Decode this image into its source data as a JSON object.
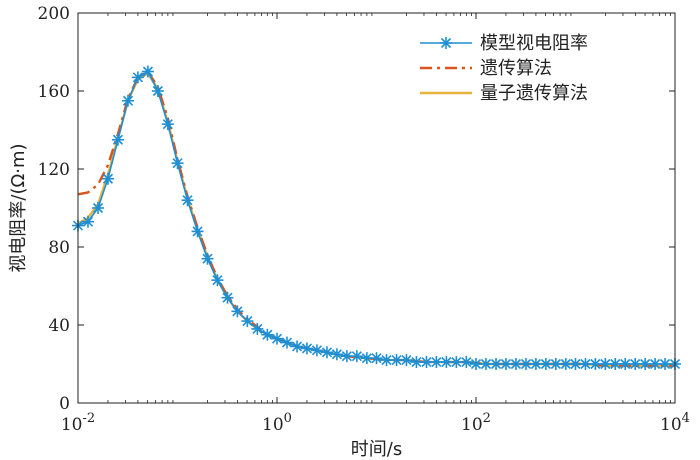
{
  "chart_data": {
    "type": "line",
    "title": "",
    "xlabel": "时间/s",
    "ylabel": "视电阻率/(Ω·m)",
    "xscale": "log",
    "xlim": [
      0.01,
      10000
    ],
    "ylim": [
      0,
      200
    ],
    "x_ticks": [
      {
        "value": 0.01,
        "base": "10",
        "exp": "-2"
      },
      {
        "value": 1,
        "base": "10",
        "exp": "0"
      },
      {
        "value": 100,
        "base": "10",
        "exp": "2"
      },
      {
        "value": 10000,
        "base": "10",
        "exp": "4"
      }
    ],
    "y_ticks": [
      "0",
      "40",
      "80",
      "120",
      "160",
      "200"
    ],
    "legend_position": "top-right",
    "series": [
      {
        "name": "模型视电阻率",
        "color": "#1f8fd4",
        "style": "solid-star-markers",
        "x": [
          0.01,
          0.0126,
          0.0159,
          0.02,
          0.0252,
          0.0318,
          0.04,
          0.0504,
          0.0635,
          0.08,
          0.1,
          0.126,
          0.159,
          0.2,
          0.252,
          0.318,
          0.4,
          0.504,
          0.635,
          0.8,
          1.0,
          1.26,
          1.59,
          2.0,
          2.52,
          3.18,
          4.0,
          5.04,
          6.35,
          8.0,
          10,
          12.6,
          15.9,
          20,
          25.2,
          31.8,
          40,
          50.4,
          63.5,
          80,
          100,
          126,
          159,
          200,
          252,
          318,
          400,
          504,
          635,
          800,
          1000,
          1259,
          1585,
          1995,
          2512,
          3162,
          3981,
          5012,
          6310,
          7943,
          10000
        ],
        "y": [
          91,
          93,
          100,
          115,
          135,
          155,
          167,
          170,
          160,
          143,
          123,
          104,
          88,
          74,
          63,
          54,
          47,
          42,
          38,
          35,
          33,
          31,
          29,
          28,
          27,
          26,
          25,
          24,
          24,
          23,
          23,
          22,
          22,
          22,
          21,
          21,
          21,
          21,
          21,
          21,
          20,
          20,
          20,
          20,
          20,
          20,
          20,
          20,
          20,
          20,
          20,
          20,
          20,
          20,
          20,
          20,
          20,
          20,
          20,
          20,
          20
        ]
      },
      {
        "name": "遗传算法",
        "color": "#d9541e",
        "style": "dash-dot",
        "x": [
          0.01,
          0.0126,
          0.0159,
          0.02,
          0.0252,
          0.0318,
          0.04,
          0.0504,
          0.0635,
          0.08,
          0.1,
          0.126,
          0.159,
          0.2,
          0.252,
          0.318,
          0.4,
          0.504,
          0.635,
          0.8,
          1.0,
          1.26,
          1.59,
          2.0,
          3.18,
          5.04,
          8.0,
          12.6,
          20,
          31.8,
          50.4,
          80,
          126,
          200,
          318,
          504,
          800,
          1259,
          1995,
          3162,
          5012,
          7943,
          10000
        ],
        "y": [
          107,
          108,
          112,
          122,
          138,
          156,
          167,
          170,
          162,
          146,
          125,
          106,
          90,
          76,
          64,
          55,
          48,
          43,
          39,
          35,
          33,
          31,
          29,
          28,
          26,
          24,
          23,
          22,
          22,
          21,
          21,
          21,
          20,
          20,
          20,
          20,
          20,
          20,
          19,
          19,
          19,
          19,
          19
        ]
      },
      {
        "name": "量子遗传算法",
        "color": "#e8b33a",
        "style": "solid",
        "x": [
          0.01,
          0.0126,
          0.0159,
          0.02,
          0.0252,
          0.0318,
          0.04,
          0.0504,
          0.0635,
          0.08,
          0.1,
          0.126,
          0.159,
          0.2,
          0.252,
          0.318,
          0.4,
          0.504,
          0.635,
          0.8,
          1.0,
          1.26,
          1.59,
          2.0,
          3.18,
          5.04,
          8.0,
          12.6,
          20,
          31.8,
          50.4,
          80,
          126,
          200,
          318,
          504,
          800,
          1259,
          1995,
          3162,
          5012,
          7943,
          10000
        ],
        "y": [
          92,
          95,
          102,
          117,
          136,
          155,
          166,
          169,
          161,
          144,
          124,
          105,
          89,
          75,
          63,
          54,
          47,
          42,
          38,
          35,
          33,
          31,
          29,
          28,
          26,
          24,
          23,
          22,
          22,
          21,
          21,
          21,
          20,
          20,
          20,
          20,
          20,
          20,
          19,
          19,
          19,
          19,
          19
        ]
      }
    ]
  }
}
